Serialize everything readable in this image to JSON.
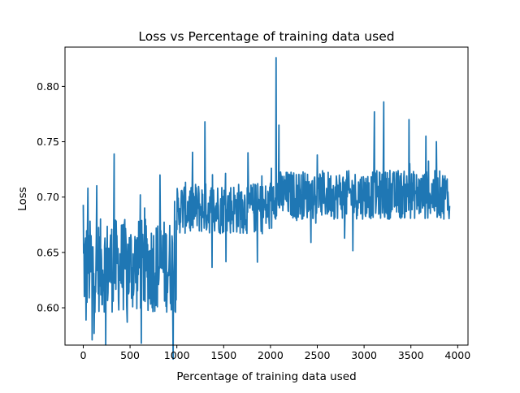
{
  "chart_data": {
    "type": "line",
    "title": "Loss vs Percentage of training data used",
    "xlabel": "Percentage of training data used",
    "ylabel": "Loss",
    "xlim": [
      -195,
      4110
    ],
    "ylim": [
      0.5663,
      0.8355
    ],
    "xticks": [
      0,
      500,
      1000,
      1500,
      2000,
      2500,
      3000,
      3500,
      4000
    ],
    "xtick_labels": [
      "0",
      "500",
      "1000",
      "1500",
      "2000",
      "2500",
      "3000",
      "3500",
      "4000"
    ],
    "yticks": [
      0.6,
      0.65,
      0.7,
      0.75,
      0.8
    ],
    "ytick_labels": [
      "0.60",
      "0.65",
      "0.70",
      "0.75",
      "0.80"
    ],
    "grid": false,
    "legend": "none",
    "series": [
      {
        "color": "#1f77b4",
        "x_range": [
          0,
          3914
        ],
        "segments": [
          {
            "x_from": 0,
            "x_to": 1000,
            "mean": 0.638,
            "band_low": 0.6,
            "band_high": 0.685
          },
          {
            "x_from": 1000,
            "x_to": 2020,
            "mean": 0.69,
            "band_low": 0.668,
            "band_high": 0.715
          },
          {
            "x_from": 2020,
            "x_to": 3914,
            "mean": 0.702,
            "band_low": 0.684,
            "band_high": 0.728
          }
        ],
        "notable_points": [
          {
            "x": 0,
            "y": 0.693
          },
          {
            "x": 30,
            "y": 0.589
          },
          {
            "x": 50,
            "y": 0.708
          },
          {
            "x": 95,
            "y": 0.571
          },
          {
            "x": 330,
            "y": 0.739
          },
          {
            "x": 470,
            "y": 0.587
          },
          {
            "x": 610,
            "y": 0.702
          },
          {
            "x": 820,
            "y": 0.72
          },
          {
            "x": 985,
            "y": 0.596
          },
          {
            "x": 1015,
            "y": 0.699
          },
          {
            "x": 1300,
            "y": 0.768
          },
          {
            "x": 1760,
            "y": 0.74
          },
          {
            "x": 2010,
            "y": 0.726
          },
          {
            "x": 2060,
            "y": 0.826
          },
          {
            "x": 2090,
            "y": 0.765
          },
          {
            "x": 2500,
            "y": 0.738
          },
          {
            "x": 3110,
            "y": 0.777
          },
          {
            "x": 3210,
            "y": 0.786
          },
          {
            "x": 3480,
            "y": 0.77
          },
          {
            "x": 3660,
            "y": 0.755
          },
          {
            "x": 3914,
            "y": 0.692
          }
        ]
      }
    ]
  }
}
